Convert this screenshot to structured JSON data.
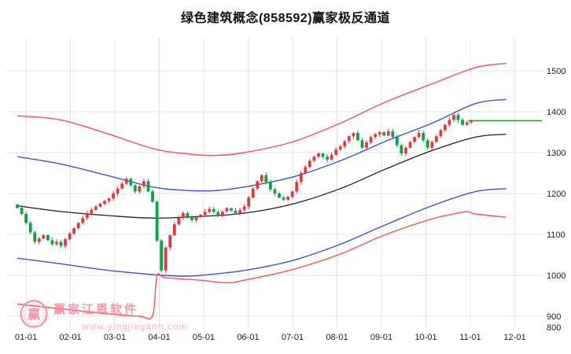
{
  "title": "绿色建筑概念(858592)赢家极反通道",
  "watermark": {
    "brand": "赢家江恩软件",
    "url": "www.yingjiagann.com",
    "logo_char": "赢"
  },
  "chart_data": {
    "type": "candlestick",
    "title": "绿色建筑概念(858592)赢家极反通道",
    "x_tick_labels": [
      "01-01",
      "02-01",
      "03-01",
      "04-01",
      "05-01",
      "06-01",
      "07-01",
      "08-01",
      "09-01",
      "10-01",
      "11-01",
      "12-01"
    ],
    "y_tick_labels": [
      1500,
      1400,
      1300,
      1200,
      1100,
      1000,
      900,
      800
    ],
    "ylim": [
      869,
      1577
    ],
    "grid": true,
    "y_axis_side": "right",
    "colors": {
      "up": "#e03b3b",
      "down": "#12a04a",
      "outer_band": "#ff5050",
      "inner_band": "#3f51d6",
      "mid_line": "#202020",
      "last_price": "#0faf20",
      "grid": "#e3e3e3",
      "axis_text": "#222222"
    },
    "first_open": 1173,
    "close": [
      1165,
      1150,
      1128,
      1105,
      1082,
      1090,
      1098,
      1086,
      1076,
      1082,
      1072,
      1088,
      1102,
      1115,
      1128,
      1140,
      1152,
      1160,
      1168,
      1175,
      1182,
      1188,
      1200,
      1212,
      1224,
      1236,
      1220,
      1205,
      1218,
      1230,
      1205,
      1180,
      1085,
      1012,
      1068,
      1098,
      1125,
      1140,
      1152,
      1143,
      1135,
      1142,
      1148,
      1155,
      1162,
      1155,
      1148,
      1156,
      1164,
      1158,
      1152,
      1160,
      1168,
      1190,
      1212,
      1230,
      1245,
      1228,
      1210,
      1200,
      1190,
      1185,
      1192,
      1205,
      1228,
      1250,
      1265,
      1280,
      1290,
      1298,
      1290,
      1283,
      1295,
      1308,
      1315,
      1328,
      1340,
      1348,
      1330,
      1312,
      1325,
      1338,
      1345,
      1350,
      1342,
      1352,
      1338,
      1318,
      1298,
      1312,
      1326,
      1338,
      1348,
      1330,
      1312,
      1326,
      1340,
      1355,
      1368,
      1380,
      1392,
      1380,
      1368,
      1374,
      1378
    ],
    "bands": {
      "upper_outer": [
        [
          0,
          1390
        ],
        [
          10,
          1380
        ],
        [
          21,
          1345
        ],
        [
          31,
          1310
        ],
        [
          38,
          1298
        ],
        [
          45,
          1293
        ],
        [
          52,
          1300
        ],
        [
          63,
          1326
        ],
        [
          74,
          1372
        ],
        [
          84,
          1422
        ],
        [
          95,
          1468
        ],
        [
          105,
          1508
        ],
        [
          112,
          1518
        ]
      ],
      "upper_inner": [
        [
          0,
          1290
        ],
        [
          10,
          1272
        ],
        [
          21,
          1243
        ],
        [
          31,
          1216
        ],
        [
          38,
          1208
        ],
        [
          45,
          1207
        ],
        [
          52,
          1216
        ],
        [
          63,
          1240
        ],
        [
          74,
          1280
        ],
        [
          84,
          1326
        ],
        [
          95,
          1372
        ],
        [
          105,
          1420
        ],
        [
          112,
          1430
        ]
      ],
      "middle": [
        [
          0,
          1170
        ],
        [
          10,
          1156
        ],
        [
          21,
          1146
        ],
        [
          31,
          1140
        ],
        [
          42,
          1144
        ],
        [
          52,
          1152
        ],
        [
          63,
          1174
        ],
        [
          74,
          1212
        ],
        [
          84,
          1258
        ],
        [
          95,
          1305
        ],
        [
          105,
          1338
        ],
        [
          112,
          1345
        ]
      ],
      "lower_inner": [
        [
          0,
          1042
        ],
        [
          10,
          1028
        ],
        [
          21,
          1012
        ],
        [
          31,
          1002
        ],
        [
          38,
          998
        ],
        [
          42,
          1000
        ],
        [
          52,
          1012
        ],
        [
          63,
          1036
        ],
        [
          74,
          1076
        ],
        [
          84,
          1122
        ],
        [
          95,
          1170
        ],
        [
          105,
          1205
        ],
        [
          112,
          1212
        ]
      ],
      "lower_outer": [
        [
          0,
          930
        ],
        [
          10,
          918
        ],
        [
          21,
          906
        ],
        [
          28,
          900
        ],
        [
          31,
          901
        ],
        [
          32,
          998
        ],
        [
          34,
          994
        ],
        [
          42,
          988
        ],
        [
          48,
          982
        ],
        [
          52,
          988
        ],
        [
          63,
          1014
        ],
        [
          74,
          1052
        ],
        [
          84,
          1098
        ],
        [
          95,
          1138
        ],
        [
          100,
          1150
        ],
        [
          103,
          1156
        ],
        [
          105,
          1150
        ],
        [
          112,
          1142
        ]
      ]
    },
    "last_price": 1378
  }
}
